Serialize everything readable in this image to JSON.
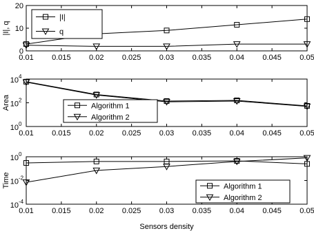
{
  "chart_data": [
    {
      "type": "line",
      "xlabel": "",
      "ylabel": "|I|, q",
      "ylim": [
        0,
        20
      ],
      "yscale": "linear",
      "yticks": [
        0,
        10,
        20
      ],
      "yticklabels": [
        "0",
        "10",
        "20"
      ],
      "xlim": [
        0.01,
        0.05
      ],
      "xticks": [
        0.01,
        0.015,
        0.02,
        0.025,
        0.03,
        0.035,
        0.04,
        0.045,
        0.05
      ],
      "xticklabels": [
        "0.01",
        "0.015",
        "0.02",
        "0.025",
        "0.03",
        "0.035",
        "0.04",
        "0.045",
        "0.05"
      ],
      "x": [
        0.01,
        0.02,
        0.03,
        0.04,
        0.05
      ],
      "legend_location": "top-left",
      "series": [
        {
          "name": "|I|",
          "marker": "square",
          "values": [
            3.0,
            7.5,
            9.0,
            11.5,
            14.0
          ]
        },
        {
          "name": "q",
          "marker": "triangle-down",
          "values": [
            2.5,
            2.0,
            2.0,
            3.0,
            3.0
          ]
        }
      ]
    },
    {
      "type": "line",
      "xlabel": "",
      "ylabel": "Area",
      "ylim": [
        1,
        10000
      ],
      "yscale": "log",
      "yticks": [
        1,
        100,
        10000
      ],
      "yticklabels": [
        "10",
        "10",
        "10"
      ],
      "ytickexps": [
        "0",
        "2",
        "4"
      ],
      "xlim": [
        0.01,
        0.05
      ],
      "xticks": [
        0.01,
        0.015,
        0.02,
        0.025,
        0.03,
        0.035,
        0.04,
        0.045,
        0.05
      ],
      "xticklabels": [
        "0.01",
        "0.015",
        "0.02",
        "0.025",
        "0.03",
        "0.035",
        "0.04",
        "0.045",
        "0.05"
      ],
      "x": [
        0.01,
        0.02,
        0.03,
        0.04,
        0.05
      ],
      "legend_location": "bottom-left",
      "series": [
        {
          "name": "Algorithm 1",
          "marker": "square",
          "values": [
            6000,
            500,
            140,
            160,
            55
          ]
        },
        {
          "name": "Algorithm 2",
          "marker": "triangle-down",
          "values": [
            5500,
            450,
            120,
            140,
            50
          ]
        }
      ]
    },
    {
      "type": "line",
      "xlabel": "Sensors density",
      "ylabel": "Time",
      "ylim": [
        0.0001,
        1
      ],
      "yscale": "log",
      "yticks": [
        0.0001,
        0.01,
        1
      ],
      "yticklabels": [
        "10",
        "10",
        "10"
      ],
      "ytickexps": [
        "-4",
        "-2",
        "0"
      ],
      "xlim": [
        0.01,
        0.05
      ],
      "xticks": [
        0.01,
        0.015,
        0.02,
        0.025,
        0.03,
        0.035,
        0.04,
        0.045,
        0.05
      ],
      "xticklabels": [
        "0.01",
        "0.015",
        "0.02",
        "0.025",
        "0.03",
        "0.035",
        "0.04",
        "0.045",
        "0.05"
      ],
      "x": [
        0.01,
        0.02,
        0.03,
        0.04,
        0.05
      ],
      "legend_location": "bottom-right",
      "series": [
        {
          "name": "Algorithm 1",
          "marker": "square",
          "values": [
            0.3,
            0.4,
            0.4,
            0.45,
            0.25
          ]
        },
        {
          "name": "Algorithm 2",
          "marker": "triangle-down",
          "values": [
            0.007,
            0.07,
            0.15,
            0.4,
            0.8
          ]
        }
      ]
    }
  ]
}
